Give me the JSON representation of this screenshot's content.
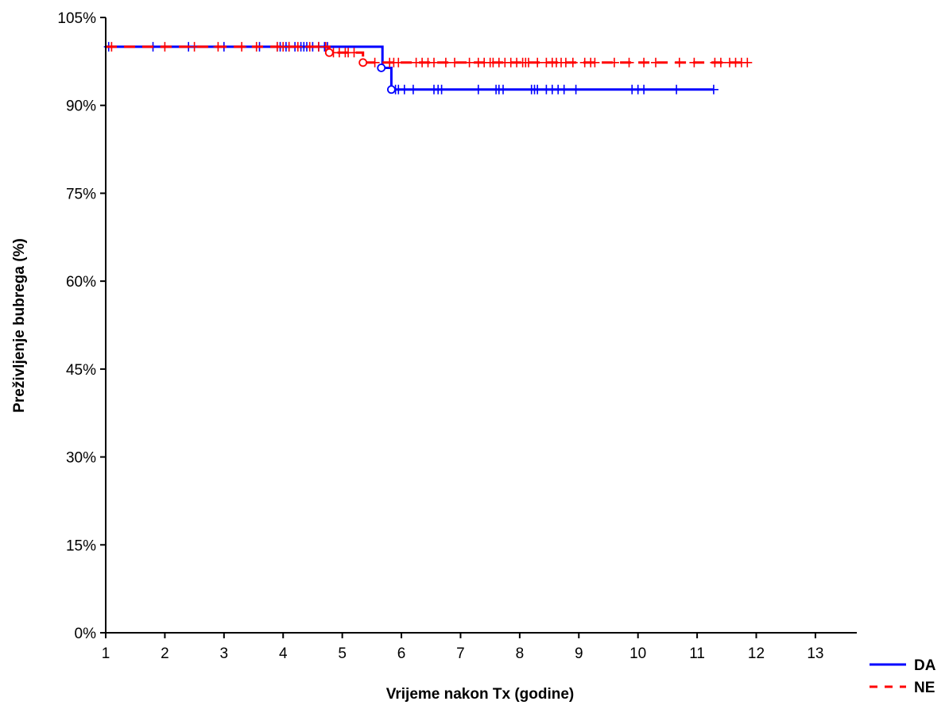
{
  "chart_data": {
    "type": "line",
    "subtype": "kaplan-meier",
    "title": "",
    "xlabel": "Vrijeme nakon Tx (godine)",
    "ylabel": "Preživljenje bubrega (%)",
    "xlim": [
      1,
      13.7
    ],
    "ylim": [
      0,
      105
    ],
    "xticks": [
      1,
      2,
      3,
      4,
      5,
      6,
      7,
      8,
      9,
      10,
      11,
      12,
      13
    ],
    "xtick_labels": [
      "1",
      "2",
      "3",
      "4",
      "5",
      "6",
      "7",
      "8",
      "9",
      "10",
      "11",
      "12",
      "13"
    ],
    "yticks": [
      0,
      15,
      30,
      45,
      60,
      75,
      90,
      105
    ],
    "ytick_labels": [
      "0%",
      "15%",
      "30%",
      "45%",
      "60%",
      "75%",
      "90%",
      "105%"
    ],
    "grid": false,
    "legend_position": "bottom-right",
    "series": [
      {
        "name": "DA",
        "color": "#0000ff",
        "line_style": "solid",
        "steps": [
          [
            1,
            100
          ],
          [
            5.68,
            100
          ],
          [
            5.68,
            96.4
          ],
          [
            5.83,
            96.4
          ],
          [
            5.83,
            92.7
          ],
          [
            11.28,
            92.7
          ]
        ],
        "events": [
          [
            5.66,
            96.4
          ],
          [
            5.83,
            92.7
          ]
        ],
        "censored": [
          [
            1.05,
            100
          ],
          [
            1.8,
            100
          ],
          [
            2.4,
            100
          ],
          [
            3.0,
            100
          ],
          [
            3.6,
            100
          ],
          [
            3.9,
            100
          ],
          [
            3.95,
            100
          ],
          [
            4.05,
            100
          ],
          [
            4.1,
            100
          ],
          [
            4.2,
            100
          ],
          [
            4.3,
            100
          ],
          [
            4.35,
            100
          ],
          [
            4.4,
            100
          ],
          [
            4.5,
            100
          ],
          [
            4.6,
            100
          ],
          [
            4.7,
            100
          ],
          [
            4.75,
            100
          ],
          [
            5.9,
            92.7
          ],
          [
            5.95,
            92.7
          ],
          [
            6.05,
            92.7
          ],
          [
            6.2,
            92.7
          ],
          [
            6.55,
            92.7
          ],
          [
            6.62,
            92.7
          ],
          [
            6.68,
            92.7
          ],
          [
            7.3,
            92.7
          ],
          [
            7.6,
            92.7
          ],
          [
            7.65,
            92.7
          ],
          [
            7.72,
            92.7
          ],
          [
            8.2,
            92.7
          ],
          [
            8.25,
            92.7
          ],
          [
            8.3,
            92.7
          ],
          [
            8.45,
            92.7
          ],
          [
            8.55,
            92.7
          ],
          [
            8.65,
            92.7
          ],
          [
            8.75,
            92.7
          ],
          [
            8.95,
            92.7
          ],
          [
            9.9,
            92.7
          ],
          [
            10.0,
            92.7
          ],
          [
            10.1,
            92.7
          ],
          [
            10.65,
            92.7
          ],
          [
            11.28,
            92.7
          ]
        ]
      },
      {
        "name": "NE",
        "color": "#ff0000",
        "line_style": "dashed",
        "steps": [
          [
            1,
            100
          ],
          [
            4.78,
            100
          ],
          [
            4.78,
            99.0
          ],
          [
            5.35,
            99.0
          ],
          [
            5.35,
            97.3
          ],
          [
            11.85,
            97.3
          ]
        ],
        "events": [
          [
            4.78,
            99.0
          ],
          [
            5.35,
            97.3
          ]
        ],
        "censored": [
          [
            1.1,
            100
          ],
          [
            2.0,
            100
          ],
          [
            2.5,
            100
          ],
          [
            2.9,
            100
          ],
          [
            3.3,
            100
          ],
          [
            3.55,
            100
          ],
          [
            3.9,
            100
          ],
          [
            4.0,
            100
          ],
          [
            4.1,
            100
          ],
          [
            4.25,
            100
          ],
          [
            4.45,
            100
          ],
          [
            4.6,
            100
          ],
          [
            4.72,
            100
          ],
          [
            4.85,
            99.0
          ],
          [
            4.95,
            99.0
          ],
          [
            5.05,
            99.0
          ],
          [
            5.1,
            99.0
          ],
          [
            5.2,
            99.0
          ],
          [
            5.55,
            97.3
          ],
          [
            5.8,
            97.3
          ],
          [
            5.87,
            97.3
          ],
          [
            5.95,
            97.3
          ],
          [
            6.25,
            97.3
          ],
          [
            6.35,
            97.3
          ],
          [
            6.45,
            97.3
          ],
          [
            6.55,
            97.3
          ],
          [
            6.75,
            97.3
          ],
          [
            6.9,
            97.3
          ],
          [
            7.15,
            97.3
          ],
          [
            7.3,
            97.3
          ],
          [
            7.4,
            97.3
          ],
          [
            7.5,
            97.3
          ],
          [
            7.55,
            97.3
          ],
          [
            7.65,
            97.3
          ],
          [
            7.75,
            97.3
          ],
          [
            7.85,
            97.3
          ],
          [
            7.95,
            97.3
          ],
          [
            8.05,
            97.3
          ],
          [
            8.1,
            97.3
          ],
          [
            8.15,
            97.3
          ],
          [
            8.3,
            97.3
          ],
          [
            8.45,
            97.3
          ],
          [
            8.55,
            97.3
          ],
          [
            8.62,
            97.3
          ],
          [
            8.7,
            97.3
          ],
          [
            8.78,
            97.3
          ],
          [
            8.9,
            97.3
          ],
          [
            9.1,
            97.3
          ],
          [
            9.2,
            97.3
          ],
          [
            9.27,
            97.3
          ],
          [
            9.6,
            97.3
          ],
          [
            9.85,
            97.3
          ],
          [
            10.1,
            97.3
          ],
          [
            10.3,
            97.3
          ],
          [
            10.7,
            97.3
          ],
          [
            10.95,
            97.3
          ],
          [
            11.3,
            97.3
          ],
          [
            11.4,
            97.3
          ],
          [
            11.55,
            97.3
          ],
          [
            11.65,
            97.3
          ],
          [
            11.75,
            97.3
          ],
          [
            11.85,
            97.3
          ]
        ]
      }
    ]
  }
}
